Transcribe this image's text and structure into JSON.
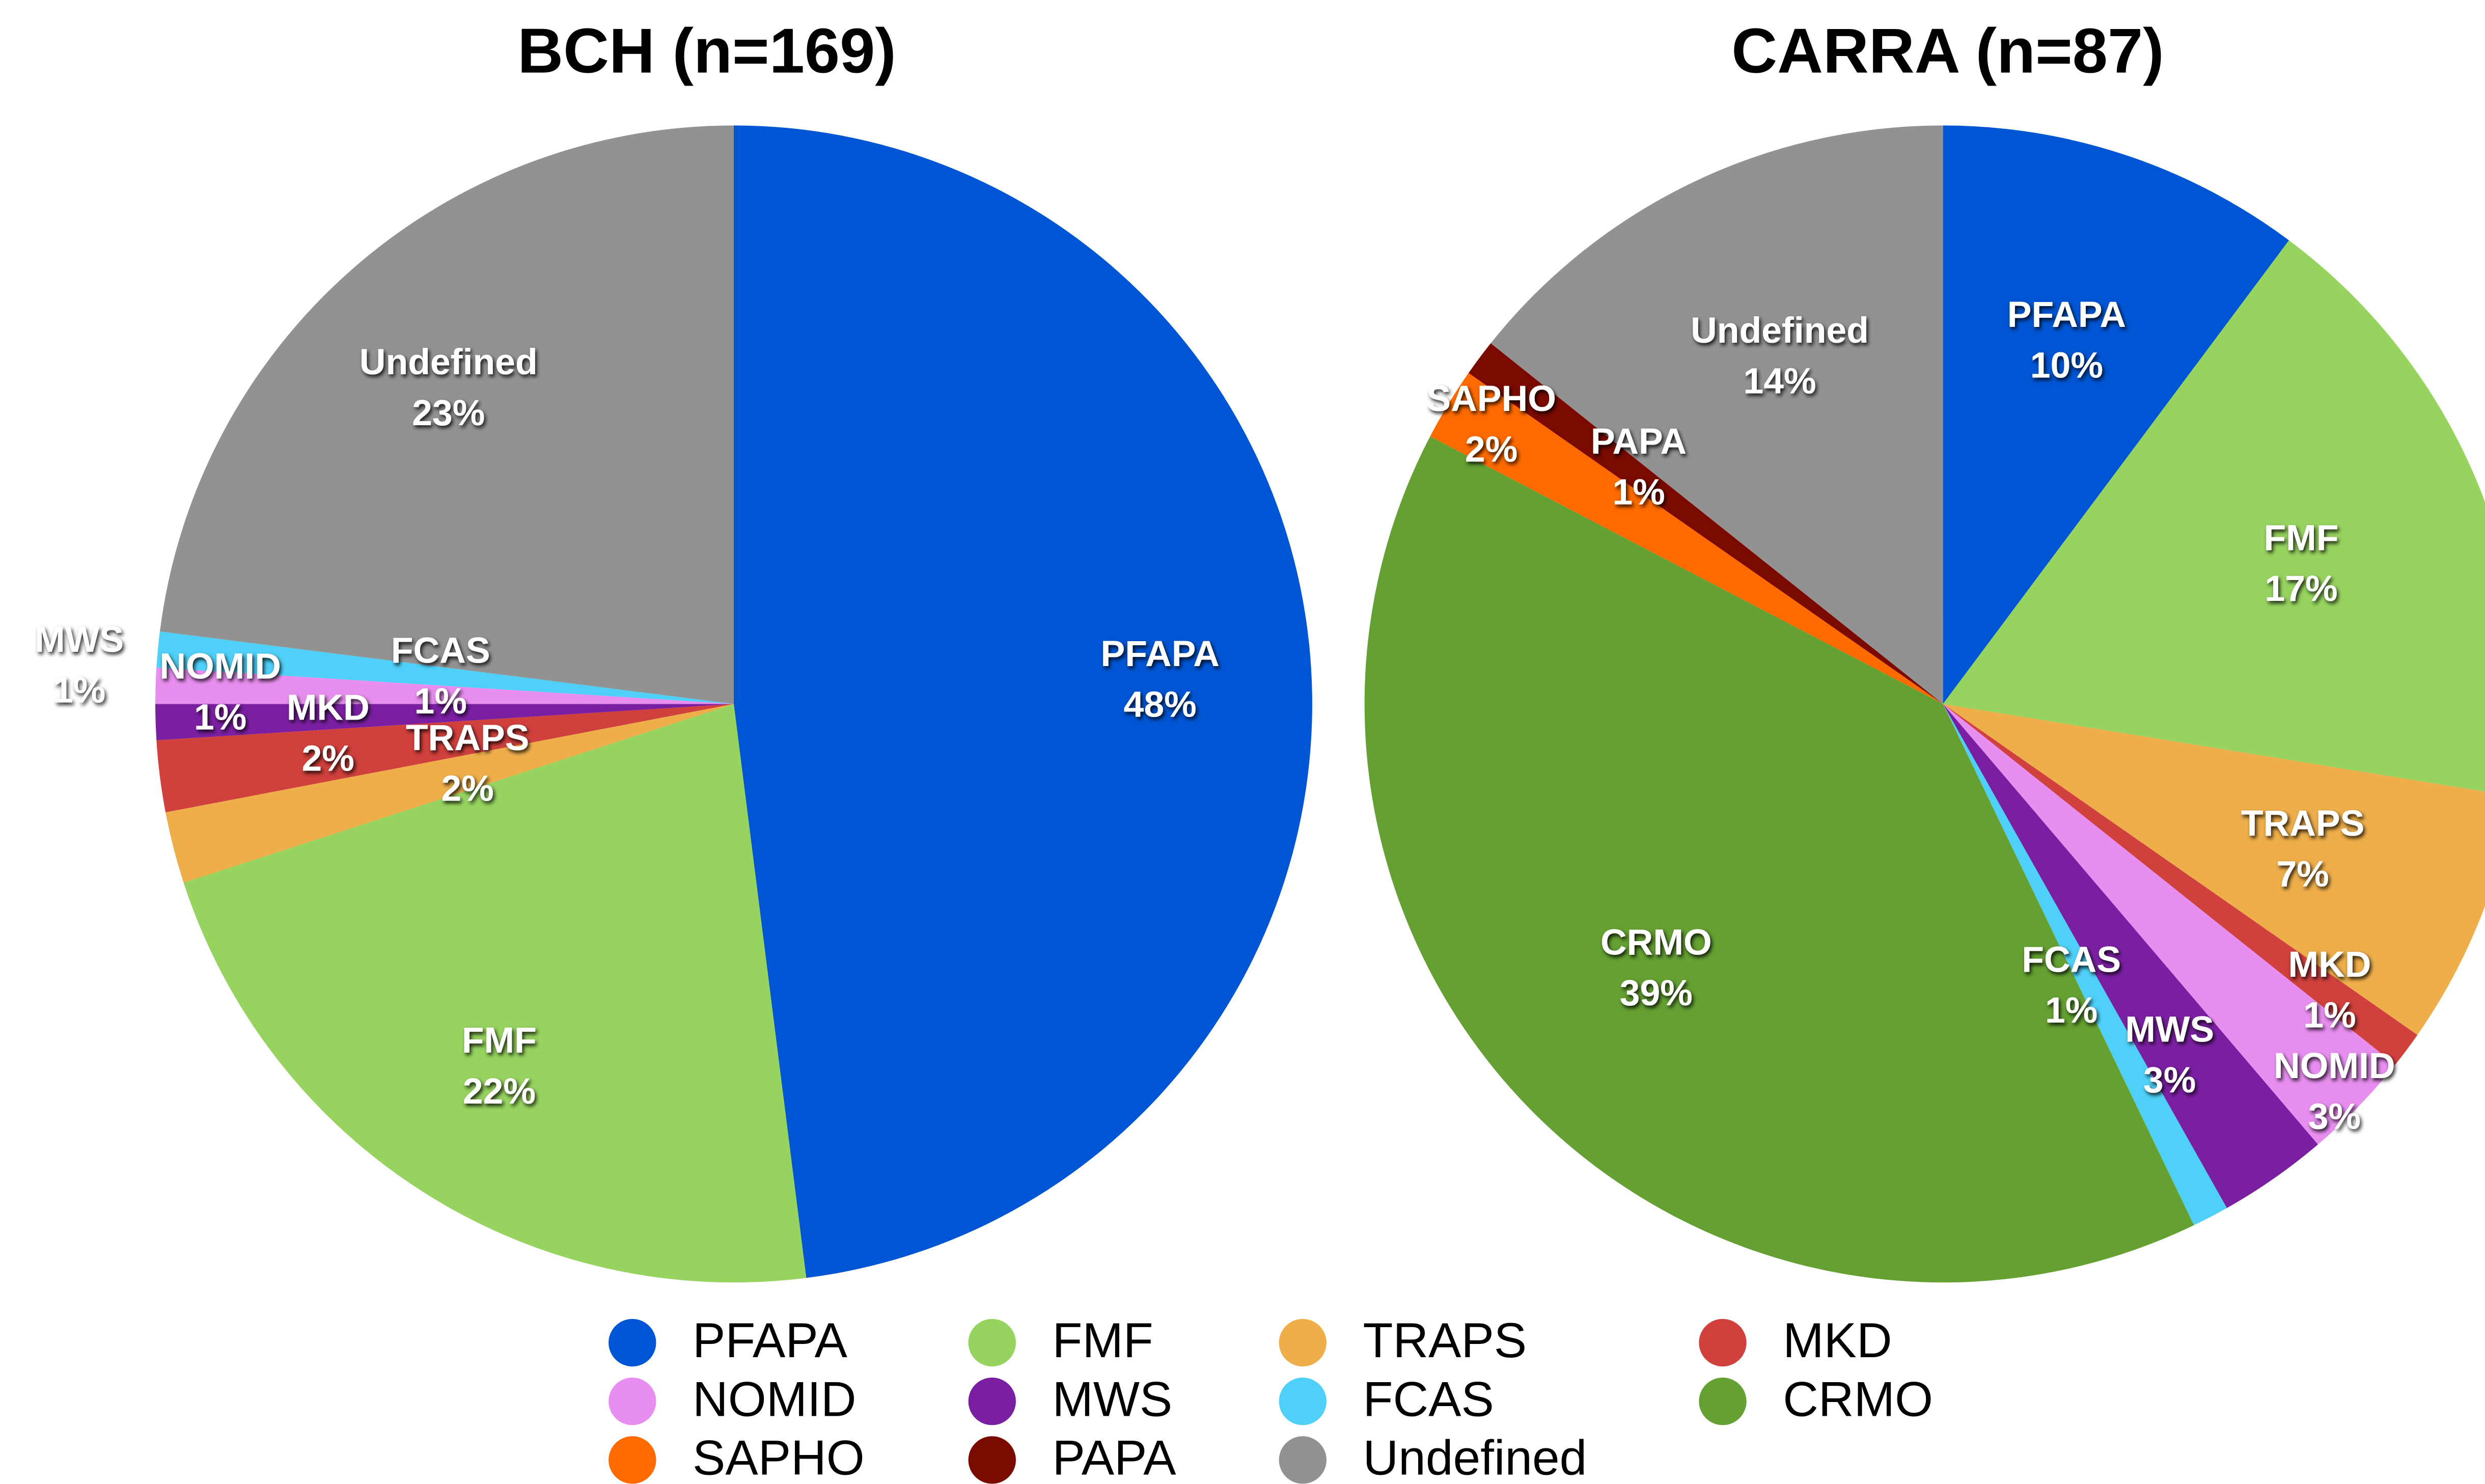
{
  "chart_data": [
    {
      "type": "pie",
      "title": "BCH (n=169)",
      "categories": [
        "PFAPA",
        "FMF",
        "TRAPS",
        "MKD",
        "MWS",
        "NOMID",
        "FCAS",
        "Undefined"
      ],
      "values": [
        48,
        22,
        2,
        2,
        1,
        1,
        1,
        23
      ],
      "value_labels": [
        "48%",
        "22%",
        "2%",
        "2%",
        "1%",
        "1%",
        "1%",
        "23%"
      ],
      "colors": [
        "#0055d4",
        "#96d35f",
        "#eeae4a",
        "#d0403c",
        "#7b1fa2",
        "#e88ef0",
        "#4fd0f8",
        "#929292"
      ]
    },
    {
      "type": "pie",
      "title": "CARRA (n=87)",
      "categories": [
        "PFAPA",
        "FMF",
        "TRAPS",
        "MKD",
        "NOMID",
        "MWS",
        "FCAS",
        "CRMO",
        "SAPHO",
        "PAPA",
        "Undefined"
      ],
      "values": [
        10,
        17,
        7,
        1,
        3,
        3,
        1,
        39,
        2,
        1,
        14
      ],
      "value_labels": [
        "10%",
        "17%",
        "7%",
        "1%",
        "3%",
        "3%",
        "1%",
        "39%",
        "2%",
        "1%",
        "14%"
      ],
      "colors": [
        "#0055d4",
        "#96d35f",
        "#eeae4a",
        "#d0403c",
        "#e88ef0",
        "#7b1fa2",
        "#4fd0f8",
        "#64a032",
        "#ff6a00",
        "#7a0a00",
        "#929292"
      ]
    }
  ],
  "legend": [
    {
      "name": "PFAPA",
      "color": "#0055d4"
    },
    {
      "name": "FMF",
      "color": "#96d35f"
    },
    {
      "name": "TRAPS",
      "color": "#eeae4a"
    },
    {
      "name": "MKD",
      "color": "#d0403c"
    },
    {
      "name": "NOMID",
      "color": "#e88ef0"
    },
    {
      "name": "MWS",
      "color": "#7b1fa2"
    },
    {
      "name": "FCAS",
      "color": "#4fd0f8"
    },
    {
      "name": "CRMO",
      "color": "#64a032"
    },
    {
      "name": "SAPHO",
      "color": "#ff6a00"
    },
    {
      "name": "PAPA",
      "color": "#7a0a00"
    },
    {
      "name": "Undefined",
      "color": "#929292"
    }
  ]
}
